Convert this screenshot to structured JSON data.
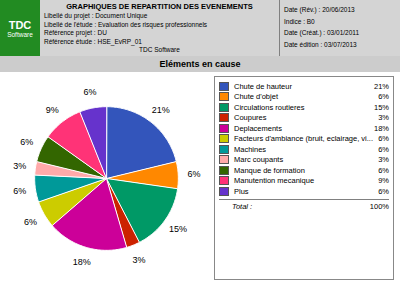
{
  "chart_data": {
    "type": "pie",
    "title": "Eléments en cause",
    "subtitle": "GRAPHIQUES DE REPARTITION DES EVENEMENTS",
    "categories": [
      "Chute de hauteur",
      "Chute d'objet",
      "Circulations routieres",
      "Coupures",
      "Deplacements",
      "Facteurs d'ambiance (bruit, eclairage, vi...",
      "Machines",
      "Marc coupants",
      "Manque de formation",
      "Manutention mecanique",
      "Plus"
    ],
    "values": [
      21,
      6,
      15,
      3,
      18,
      6,
      6,
      3,
      6,
      9,
      6
    ],
    "value_labels": [
      "21%",
      "6%",
      "15%",
      "3%",
      "18%",
      "6%",
      "6%",
      "3%",
      "6%",
      "9%",
      "6%"
    ],
    "colors": [
      "#3355BB",
      "#FF8800",
      "#009966",
      "#CC2200",
      "#CC0099",
      "#CCCC00",
      "#009999",
      "#FFAAAA",
      "#336600",
      "#FF3377",
      "#6633CC"
    ],
    "data_labels": true,
    "legend": "right",
    "total": {
      "label": "Total :",
      "value": 100,
      "value_label": "100%"
    },
    "annotations": [
      "TDC",
      "Software",
      "Libellé du projet : Document Unique",
      "Libellé de l'étude : Evaluation des risques professionnels",
      "Référence projet : DU",
      "Référence étude : HSE_EvRP_01",
      "TDC Software",
      "Date (Rév.) : 20/06/2013",
      "Indice : B0",
      "Date (Créat.) : 03/01/2011",
      "Date édition : 03/07/2013"
    ]
  }
}
